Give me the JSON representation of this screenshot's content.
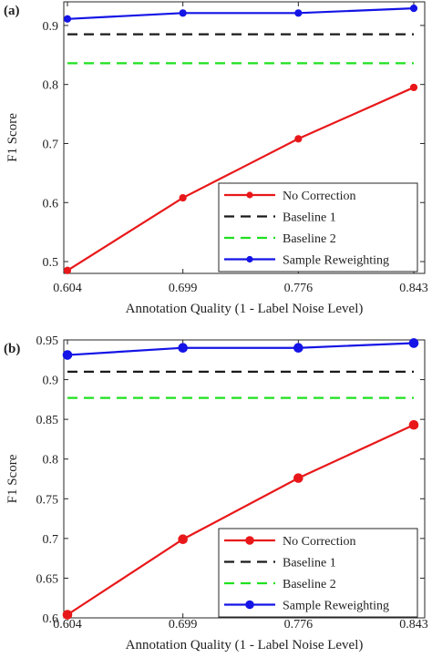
{
  "chart_data": [
    {
      "type": "line",
      "panel_label": "(a)",
      "x": [
        0.604,
        0.699,
        0.776,
        0.843
      ],
      "x_tick_labels": [
        "0.604",
        "0.699",
        "0.776",
        "0.843"
      ],
      "xlabel": "Annotation Quality (1 - Label Noise Level)",
      "ylabel": "F1 Score",
      "ylim": [
        0.48,
        0.94
      ],
      "y_ticks": [
        0.5,
        0.6,
        0.7,
        0.8,
        0.9
      ],
      "y_tick_labels": [
        "0.5",
        "0.6",
        "0.7",
        "0.8",
        "0.9"
      ],
      "grid": false,
      "legend_position": "bottom-right",
      "series": [
        {
          "name": "No Correction",
          "values": [
            0.485,
            0.608,
            0.708,
            0.795
          ],
          "color": "#e8181a",
          "style": "solid",
          "marker": "circle"
        },
        {
          "name": "Baseline 1",
          "values": [
            0.885,
            0.885,
            0.885,
            0.885
          ],
          "color": "#1a1a1a",
          "style": "dashed",
          "marker": "none"
        },
        {
          "name": "Baseline 2",
          "values": [
            0.836,
            0.836,
            0.836,
            0.836
          ],
          "color": "#1fe01f",
          "style": "dashed",
          "marker": "none"
        },
        {
          "name": "Sample Reweighting",
          "values": [
            0.911,
            0.921,
            0.921,
            0.929
          ],
          "color": "#1414e6",
          "style": "solid",
          "marker": "circle"
        }
      ]
    },
    {
      "type": "line",
      "panel_label": "(b)",
      "x": [
        0.604,
        0.699,
        0.776,
        0.843
      ],
      "x_tick_labels": [
        "0.604",
        "0.699",
        "0.776",
        "0.843"
      ],
      "xlabel": "Annotation Quality (1 - Label Noise Level)",
      "ylabel": "F1 Score",
      "ylim": [
        0.6,
        0.95
      ],
      "y_ticks": [
        0.6,
        0.65,
        0.7,
        0.75,
        0.8,
        0.85,
        0.9,
        0.95
      ],
      "y_tick_labels": [
        "0.6",
        "0.65",
        "0.7",
        "0.75",
        "0.8",
        "0.85",
        "0.9",
        "0.95"
      ],
      "grid": false,
      "legend_position": "bottom-right",
      "series": [
        {
          "name": "No Correction",
          "values": [
            0.604,
            0.699,
            0.776,
            0.843
          ],
          "color": "#e8181a",
          "style": "solid",
          "marker": "circle"
        },
        {
          "name": "Baseline 1",
          "values": [
            0.91,
            0.91,
            0.91,
            0.91
          ],
          "color": "#1a1a1a",
          "style": "dashed",
          "marker": "none"
        },
        {
          "name": "Baseline 2",
          "values": [
            0.877,
            0.877,
            0.877,
            0.877
          ],
          "color": "#1fe01f",
          "style": "dashed",
          "marker": "none"
        },
        {
          "name": "Sample Reweighting",
          "values": [
            0.931,
            0.94,
            0.94,
            0.946
          ],
          "color": "#1414e6",
          "style": "solid",
          "marker": "circle"
        }
      ]
    }
  ]
}
